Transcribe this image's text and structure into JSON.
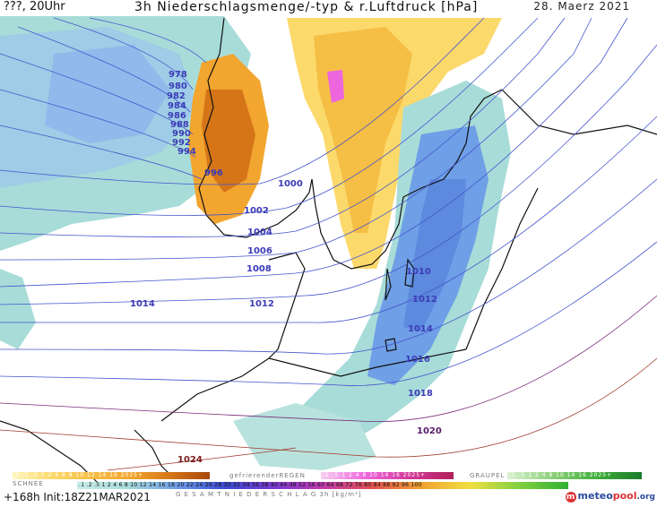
{
  "header": {
    "run_label": "???, 20Uhr",
    "title": "3h Niederschlagsmenge/-typ & r.Luftdruck [hPa]",
    "date": "28. Maerz 2021"
  },
  "isobar_labels": {
    "l978": "978",
    "l980": "980",
    "l982": "982",
    "l984": "984",
    "l986": "986",
    "l988": "988",
    "l990": "990",
    "l992": "992",
    "l994": "994",
    "l996": "996",
    "l1000": "1000",
    "l1002": "1002",
    "l1004": "1004",
    "l1006": "1006",
    "l1008": "1008",
    "l1010": "1010",
    "l1012a": "1012",
    "l1012b": "1012",
    "l1014a": "1014",
    "l1014b": "1014",
    "l1016": "1016",
    "l1018": "1018",
    "l1020": "1020",
    "l1024": "1024"
  },
  "legend": {
    "schnee_label": "SCHNEE",
    "regen_label": "gefrierenderREGEN",
    "graupel_label": "GRAUPEL",
    "gesamt_label": "G E S A M T N I E D E R S C H L A G   3h  [kg/m²]",
    "snow_scale": ".1 .2 .5 1 2 4 6 8 10 12 14 16 2025+",
    "rain_scale": ".1 .5 1 2 4 8 10 14 16 2025+",
    "graupel_scale": ".1 .5 1 2 4 8 10 14 16 2025+",
    "total_scale": ".1 .2 .5 1 2 4 6 8 10 12 14 16 18 20 22 24 26 28 30 32 34 36 38 40 44 48 52 56 60 64 68 72 76 80 84 88 92 96 100"
  },
  "footer": {
    "forecast_hour": "+168h",
    "init": "Init:18Z21MAR2021"
  },
  "logo": {
    "meteo": "meteo",
    "pool": "pool",
    "org": ".org"
  },
  "colors": {
    "light_rain": "#a8dcd9",
    "mod_rain": "#6f9fe6",
    "snow_light": "#fcd96b",
    "snow_heavy": "#f2a52f",
    "snow_very_heavy": "#d57518",
    "freezing_rain": "#ee66dd",
    "isobar": "#4455cc",
    "isobar_high": "#7a2a7a",
    "isobar_1024": "#a03a2a"
  }
}
